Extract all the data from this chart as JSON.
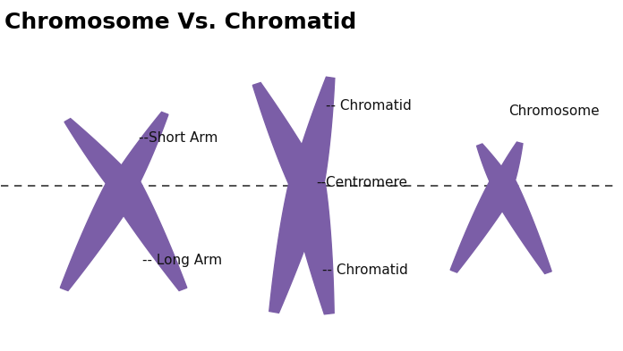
{
  "title": "Chromosome Vs. Chromatid",
  "title_fontsize": 18,
  "title_color": "#000000",
  "title_bold": true,
  "background_color": "#ffffff",
  "chromosome_color": "#7b5ea7",
  "chromosome_color_dark": "#5a3d8a",
  "dashed_line_y": 0.47,
  "dashed_line_color": "#333333",
  "labels": {
    "short_arm": "--Short Arm",
    "long_arm": "-- Long Arm",
    "chromatid_top": "-- Chromatid",
    "chromatid_bottom": "-- Chromatid",
    "centromere": "--Centromere",
    "chromosome": "Chromosome"
  },
  "label_fontsize": 11,
  "label_color": "#111111"
}
